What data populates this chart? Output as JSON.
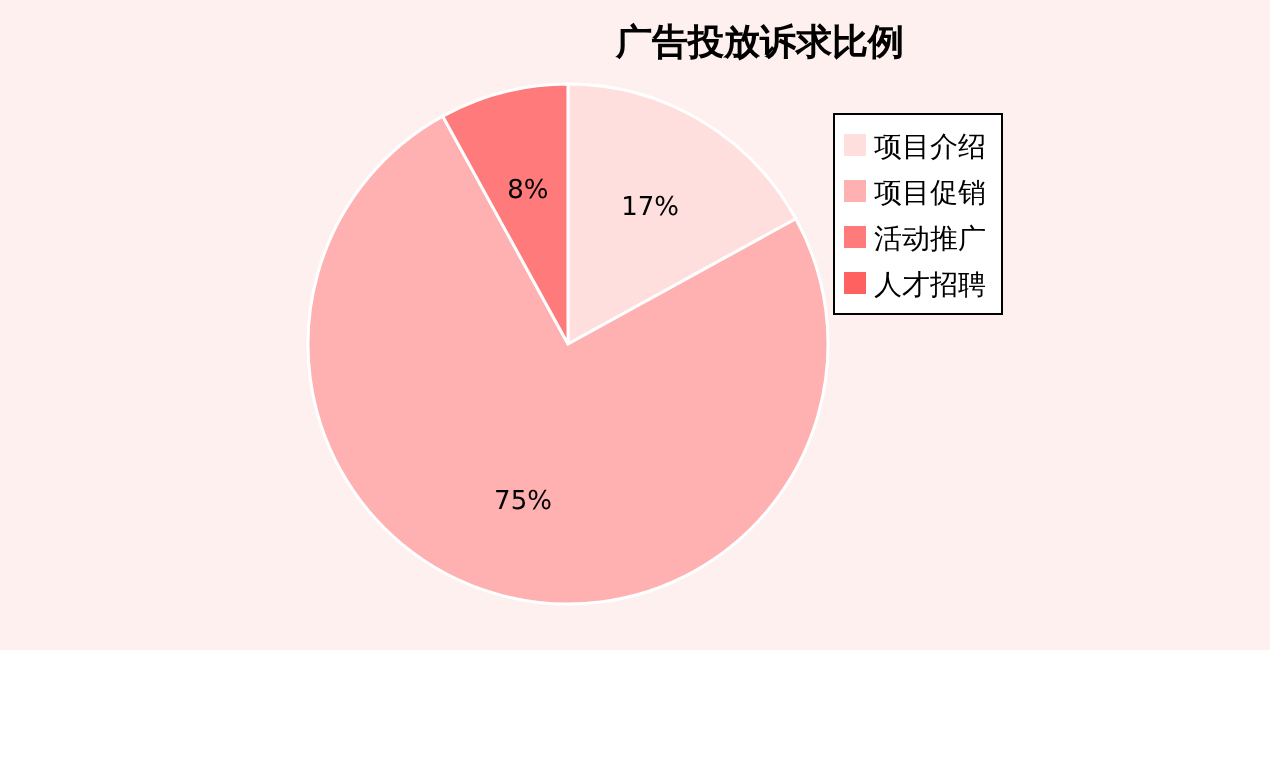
{
  "chart_data": {
    "type": "pie",
    "title": "广告投放诉求比例",
    "categories": [
      "项目介绍",
      "项目促销",
      "活动推广",
      "人才招聘"
    ],
    "values": [
      17,
      75,
      8,
      0
    ],
    "colors": [
      "#ffdede",
      "#ffb0b0",
      "#ff7a7a",
      "#ff6060"
    ],
    "value_labels": [
      "17%",
      "75%",
      "8%",
      null
    ],
    "legend": "top right"
  }
}
